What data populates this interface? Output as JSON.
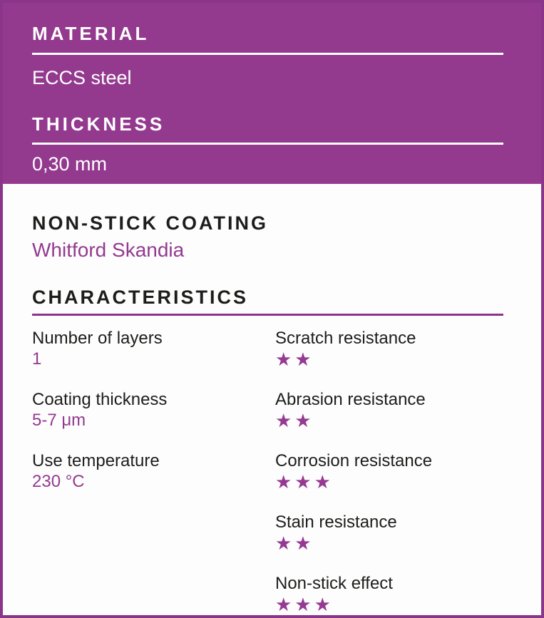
{
  "colors": {
    "accent_purple": "#933a8f",
    "border_purple": "#8a3589",
    "star_purple": "#953a92",
    "header_text": "#ffffff",
    "body_text": "#1d1d1b"
  },
  "header": {
    "fields": [
      {
        "label": "MATERIAL",
        "value": "ECCS steel"
      },
      {
        "label": "THICKNESS",
        "value": "0,30 mm"
      }
    ]
  },
  "coating": {
    "title": "NON-STICK COATING",
    "brand": "Whitford Skandia"
  },
  "characteristics": {
    "title": "CHARACTERISTICS",
    "left_column": [
      {
        "label": "Number of layers",
        "value": "1"
      },
      {
        "label": "Coating thickness",
        "value": "5-7 μm"
      },
      {
        "label": "Use temperature",
        "value": "230 °C"
      }
    ],
    "right_column": [
      {
        "label": "Scratch resistance",
        "rating": 2,
        "stars": "★★"
      },
      {
        "label": "Abrasion resistance",
        "rating": 2,
        "stars": "★★"
      },
      {
        "label": "Corrosion resistance",
        "rating": 3,
        "stars": "★★★"
      },
      {
        "label": "Stain resistance",
        "rating": 2,
        "stars": "★★"
      },
      {
        "label": "Non-stick effect",
        "rating": 3,
        "stars": "★★★"
      }
    ]
  }
}
